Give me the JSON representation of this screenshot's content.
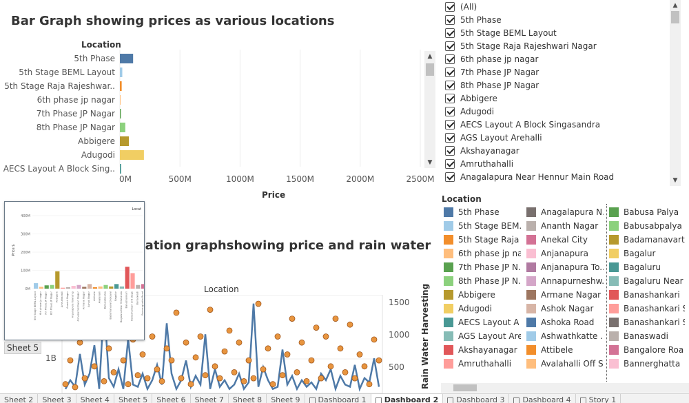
{
  "bar_chart": {
    "title": "Bar Graph showing prices as various locations",
    "location_header": "Location",
    "x_axis_label": "Price"
  },
  "filter": {
    "items": [
      "(All)",
      "5th Phase",
      "5th Stage BEML Layout",
      "5th Stage Raja Rajeshwari Nagar",
      "6th phase jp nagar",
      "7th Phase JP Nagar",
      "8th Phase JP Nagar",
      "Abbigere",
      "Adugodi",
      "AECS Layout A Block Singasandra",
      "AGS Layout Arehalli",
      "Akshayanagar",
      "Amruthahalli",
      "Anagalapura Near Hennur Main Road"
    ]
  },
  "legend": {
    "title": "Location",
    "columns": [
      [
        {
          "label": "5th Phase",
          "color": "#4e79a7"
        },
        {
          "label": "5th Stage BEM..",
          "color": "#a0cbe8"
        },
        {
          "label": "5th Stage Raja ..",
          "color": "#f28e2b"
        },
        {
          "label": "6th phase jp na..",
          "color": "#ffbe7d"
        },
        {
          "label": "7th Phase JP N..",
          "color": "#59a14f"
        },
        {
          "label": "8th Phase JP N..",
          "color": "#8cd17d"
        },
        {
          "label": "Abbigere",
          "color": "#b6992d"
        },
        {
          "label": "Adugodi",
          "color": "#f1ce63"
        },
        {
          "label": "AECS Layout A ..",
          "color": "#499894"
        },
        {
          "label": "AGS Layout Are..",
          "color": "#86bcb6"
        },
        {
          "label": "Akshayanagar",
          "color": "#e15759"
        },
        {
          "label": "Amruthahalli",
          "color": "#ff9d9a"
        }
      ],
      [
        {
          "label": "Anagalapura N..",
          "color": "#79706e"
        },
        {
          "label": "Ananth Nagar",
          "color": "#bab0ac"
        },
        {
          "label": "Anekal City",
          "color": "#d37295"
        },
        {
          "label": "Anjanapura",
          "color": "#fabfd2"
        },
        {
          "label": "Anjanapura To..",
          "color": "#b07aa1"
        },
        {
          "label": "Annapurneshw..",
          "color": "#d4a6c8"
        },
        {
          "label": "Armane Nagar",
          "color": "#9d7660"
        },
        {
          "label": "Ashok Nagar",
          "color": "#d7b5a6"
        },
        {
          "label": "Ashoka Road",
          "color": "#4e79a7"
        },
        {
          "label": "Ashwathkatte ..",
          "color": "#a0cbe8"
        },
        {
          "label": "Attibele",
          "color": "#f28e2b"
        },
        {
          "label": "Avalahalli Off S..",
          "color": "#ffbe7d"
        }
      ],
      [
        {
          "label": "Babusa Palya",
          "color": "#59a14f"
        },
        {
          "label": "Babusabpalya",
          "color": "#8cd17d"
        },
        {
          "label": "Badamanavart",
          "color": "#b6992d"
        },
        {
          "label": "Bagalur",
          "color": "#f1ce63"
        },
        {
          "label": "Bagaluru",
          "color": "#499894"
        },
        {
          "label": "Bagaluru Near",
          "color": "#86bcb6"
        },
        {
          "label": "Banashankari",
          "color": "#e15759"
        },
        {
          "label": "Banashankari S",
          "color": "#ff9d9a"
        },
        {
          "label": "Banashankari S",
          "color": "#79706e"
        },
        {
          "label": "Banaswadi",
          "color": "#bab0ac"
        },
        {
          "label": "Bangalore Roa",
          "color": "#d37295"
        },
        {
          "label": "Bannerghatta",
          "color": "#fabfd2"
        }
      ]
    ]
  },
  "combo_chart": {
    "title": "cation graphshowing price and rain water",
    "location_header": "Location",
    "right_axis_label": "Rain Water Harvesting",
    "left_tick": "1B",
    "right_ticks": [
      "1500",
      "1000",
      "500"
    ]
  },
  "thumbnail": {
    "label": "Sheet 5",
    "legend_text": "Locat",
    "y_label": "Price $",
    "y_ticks": [
      "400M",
      "300M",
      "200M",
      "100M",
      "0M"
    ]
  },
  "tabs": [
    {
      "label": "Sheet 2",
      "active": false,
      "icon": false
    },
    {
      "label": "Sheet 3",
      "active": false,
      "icon": false
    },
    {
      "label": "Sheet 4",
      "active": false,
      "icon": false
    },
    {
      "label": "Sheet 5",
      "active": false,
      "icon": false
    },
    {
      "label": "Sheet 6",
      "active": false,
      "icon": false
    },
    {
      "label": "Sheet 7",
      "active": false,
      "icon": false
    },
    {
      "label": "Sheet 8",
      "active": false,
      "icon": false
    },
    {
      "label": "Sheet 9",
      "active": false,
      "icon": false
    },
    {
      "label": "Dashboard 1",
      "active": false,
      "icon": true
    },
    {
      "label": "Dashboard 2",
      "active": true,
      "icon": true
    },
    {
      "label": "Dashboard 3",
      "active": false,
      "icon": true
    },
    {
      "label": "Dashboard 4",
      "active": false,
      "icon": true
    },
    {
      "label": "Story 1",
      "active": false,
      "icon": true
    }
  ],
  "chart_data": [
    {
      "type": "bar",
      "orientation": "horizontal",
      "title": "Bar Graph showing prices as various locations",
      "xlabel": "Price",
      "ylabel": "Location",
      "xlim": [
        0,
        2500
      ],
      "x_unit": "M",
      "x_ticks": [
        "0M",
        "500M",
        "1000M",
        "1500M",
        "2000M",
        "2500M"
      ],
      "categories": [
        "5th Phase",
        "5th Stage BEML Layout",
        "5th Stage Raja Rajeshwar..",
        "6th phase jp nagar",
        "7th Phase JP Nagar",
        "8th Phase JP Nagar",
        "Abbigere",
        "Adugodi",
        "AECS Layout A Block Sing.."
      ],
      "values": [
        110,
        20,
        15,
        2,
        8,
        45,
        75,
        200,
        10
      ],
      "colors": [
        "#4e79a7",
        "#a0cbe8",
        "#f28e2b",
        "#ffbe7d",
        "#59a14f",
        "#8cd17d",
        "#b6992d",
        "#f1ce63",
        "#499894"
      ]
    },
    {
      "type": "bar",
      "title": "Thumbnail (Sheet 5)",
      "ylim": [
        0,
        400
      ],
      "y_unit": "M",
      "categories": [
        "5th Stage BEML Layout",
        "6th phase jp nagar",
        "7th Phase JP Nagar",
        "8th Phase JP Nagar",
        "Abbigere",
        "Amruthahalli",
        "Ananth Nagar",
        "Anjanapura Township",
        "Annapurneshwari Nagar",
        "Armane Nagar",
        "Ashok Nagar",
        "Attibele",
        "Avalahalli",
        "Babusabpalya",
        "Badamanavarthekaval",
        "Bagalur",
        "Bagaluru Near Yelahanka",
        "Banashankari",
        "Banashankari 3rd stage",
        "Banaswadi",
        "Bannerghatta Road",
        "Bannerghatta"
      ],
      "values": [
        30,
        10,
        18,
        20,
        95,
        5,
        8,
        15,
        20,
        10,
        25,
        8,
        12,
        20,
        12,
        25,
        12,
        120,
        85,
        20,
        25,
        18
      ],
      "colors": [
        "#a0cbe8",
        "#ffbe7d",
        "#59a14f",
        "#8cd17d",
        "#b6992d",
        "#ff9d9a",
        "#bab0ac",
        "#fabfd2",
        "#d4a6c8",
        "#9d7660",
        "#d7b5a6",
        "#f28e2b",
        "#ffbe7d",
        "#8cd17d",
        "#b6992d",
        "#499894",
        "#86bcb6",
        "#e15759",
        "#ff9d9a",
        "#bab0ac",
        "#d37295",
        "#fabfd2"
      ]
    },
    {
      "type": "line",
      "title": "cation graphshowing price and rain water",
      "right_ylabel": "Rain Water Harvesting",
      "right_ylim": [
        0,
        1700
      ],
      "series": [
        {
          "name": "Price",
          "color": "#4e79a7",
          "values": [
            20,
            60,
            30,
            180,
            40,
            90,
            220,
            20,
            410,
            70,
            30,
            110,
            20,
            250,
            40,
            30,
            90,
            20,
            60,
            130,
            40,
            320,
            90,
            20,
            60,
            150,
            30,
            80,
            40,
            270,
            20,
            110,
            30,
            60,
            20,
            40,
            90,
            20,
            50,
            410,
            30,
            120,
            60,
            20,
            30,
            200,
            40,
            80,
            20,
            60,
            30,
            50,
            20,
            90,
            60,
            110,
            20,
            80,
            40,
            30,
            130,
            20,
            70,
            50,
            160,
            30
          ]
        },
        {
          "name": "Rain Water Harvesting",
          "color": "#e8953f",
          "values": [
            200,
            600,
            150,
            900,
            300,
            1200,
            500,
            1600,
            250,
            800,
            400,
            1100,
            600,
            200,
            950,
            350,
            700,
            300,
            1000,
            450,
            250,
            800,
            600,
            1400,
            300,
            900,
            200,
            650,
            1000,
            350,
            1450,
            500,
            300,
            750,
            1100,
            400,
            900,
            250,
            600,
            300,
            1550,
            450,
            800,
            200,
            1000,
            350,
            700,
            1300,
            400,
            900,
            250,
            600,
            1150,
            300,
            1000,
            500,
            1300,
            800,
            400,
            1200,
            300,
            700,
            500,
            200,
            950,
            600
          ]
        }
      ]
    }
  ]
}
